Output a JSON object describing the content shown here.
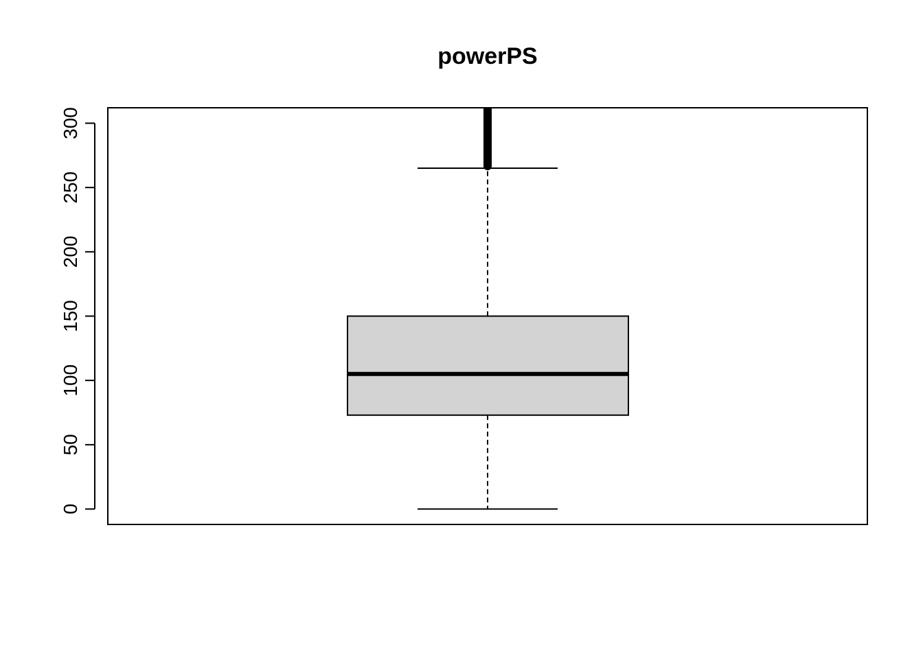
{
  "chart_data": {
    "type": "boxplot",
    "title": "powerPS",
    "xlabel": "",
    "ylabel": "",
    "ylim": [
      -12,
      312
    ],
    "yticks": [
      0,
      50,
      100,
      150,
      200,
      250,
      300
    ],
    "box": {
      "min": 0,
      "q1": 73,
      "median": 105,
      "q3": 150,
      "max": 265
    },
    "outliers_range": [
      265,
      312
    ],
    "box_color": "#d3d3d3",
    "line_color": "#000000"
  }
}
